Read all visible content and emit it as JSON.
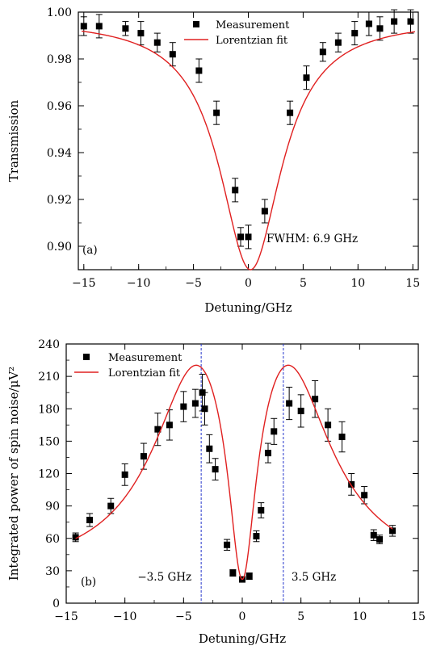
{
  "chart_data": [
    {
      "type": "scatter",
      "panel_label": "(a)",
      "xlabel": "Detuning/GHz",
      "ylabel": "Transmission",
      "xlim": [
        -15.5,
        15.5
      ],
      "ylim": [
        0.89,
        1.0
      ],
      "xticks": [
        -15,
        -10,
        -5,
        0,
        5,
        10,
        15
      ],
      "xtick_labels": [
        "−15",
        "−10",
        "−5",
        "0",
        "5",
        "10",
        "15"
      ],
      "yticks": [
        0.9,
        0.92,
        0.94,
        0.96,
        0.98,
        1.0
      ],
      "ytick_labels": [
        "0.90",
        "0.92",
        "0.94",
        "0.96",
        "0.98",
        "1.00"
      ],
      "grid": false,
      "legend_position": "top-center",
      "annotation": "FWHM: 6.9 GHz",
      "series": [
        {
          "name": "Measurement",
          "marker": "square",
          "color": "#000000",
          "x": [
            -15.0,
            -13.6,
            -11.2,
            -9.8,
            -8.3,
            -6.9,
            -4.5,
            -2.9,
            -1.2,
            -0.7,
            0.0,
            1.5,
            3.8,
            5.3,
            6.8,
            8.2,
            9.7,
            11.0,
            12.0,
            13.3,
            14.8
          ],
          "y": [
            0.994,
            0.994,
            0.993,
            0.991,
            0.987,
            0.982,
            0.975,
            0.957,
            0.924,
            0.904,
            0.904,
            0.915,
            0.957,
            0.972,
            0.983,
            0.987,
            0.991,
            0.995,
            0.993,
            0.996,
            0.996
          ],
          "yerr": [
            0.004,
            0.005,
            0.003,
            0.005,
            0.004,
            0.005,
            0.005,
            0.005,
            0.005,
            0.004,
            0.005,
            0.005,
            0.005,
            0.005,
            0.004,
            0.004,
            0.005,
            0.005,
            0.005,
            0.005,
            0.005
          ]
        },
        {
          "name": "Lorentzian fit",
          "line": true,
          "color": "#e02020",
          "model": {
            "kind": "lorentzian_dip",
            "baseline": 0.997,
            "depth": 0.107,
            "center": 0.2,
            "fwhm": 6.9
          }
        }
      ]
    },
    {
      "type": "scatter",
      "panel_label": "(b)",
      "xlabel": "Detuning/GHz",
      "ylabel": "Integrated power of spin noise/μV²",
      "xlim": [
        -15,
        15
      ],
      "ylim": [
        0,
        240
      ],
      "xticks": [
        -15,
        -10,
        -5,
        0,
        5,
        10,
        15
      ],
      "xtick_labels": [
        "−15",
        "−10",
        "−5",
        "0",
        "5",
        "10",
        "15"
      ],
      "yticks": [
        0,
        30,
        60,
        90,
        120,
        150,
        180,
        210,
        240
      ],
      "ytick_labels": [
        "0",
        "30",
        "60",
        "90",
        "120",
        "150",
        "180",
        "210",
        "240"
      ],
      "grid": false,
      "legend_position": "top-left",
      "vlines": [
        {
          "x": -3.5,
          "label": "−3.5 GHz",
          "color": "#2233cc"
        },
        {
          "x": 3.5,
          "label": "3.5 GHz",
          "color": "#2233cc"
        }
      ],
      "series": [
        {
          "name": "Measurement",
          "marker": "square",
          "color": "#000000",
          "x": [
            -14.2,
            -13.0,
            -11.2,
            -10.0,
            -8.4,
            -7.2,
            -6.2,
            -5.0,
            -4.0,
            -3.4,
            -3.2,
            -2.8,
            -2.3,
            -1.3,
            -0.8,
            0.0,
            0.6,
            1.2,
            1.6,
            2.2,
            2.7,
            4.0,
            5.0,
            6.2,
            7.3,
            8.5,
            9.3,
            10.4,
            11.2,
            11.7,
            12.8
          ],
          "y": [
            61,
            77,
            90,
            119,
            136,
            161,
            165,
            182,
            185,
            195,
            180,
            143,
            124,
            54,
            28,
            22,
            25,
            62,
            86,
            139,
            159,
            185,
            178,
            189,
            165,
            154,
            110,
            100,
            63,
            59,
            67
          ],
          "yerr": [
            4,
            6,
            7,
            10,
            12,
            15,
            14,
            14,
            13,
            17,
            15,
            13,
            10,
            5,
            3,
            2,
            3,
            5,
            7,
            9,
            12,
            15,
            15,
            17,
            15,
            14,
            10,
            8,
            5,
            4,
            5
          ]
        },
        {
          "name": "Lorentzian fit",
          "line": true,
          "color": "#e02020",
          "model": {
            "kind": "lorentzian_peaks_minus_dip",
            "baseline": 22,
            "peak_amp": 178,
            "peak_centers": [
              -3.7,
              3.7
            ],
            "peak_fwhm": 9.0,
            "dip_fwhm": 2.8
          }
        }
      ]
    }
  ]
}
